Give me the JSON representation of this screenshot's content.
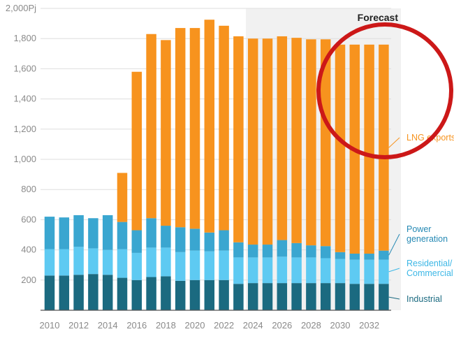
{
  "chart_data": {
    "type": "bar",
    "stacked": true,
    "y_unit_label": "2,000Pj",
    "ylim": [
      0,
      2000
    ],
    "y_ticks": [
      "2,000Pj",
      "1,800",
      "1,600",
      "1,400",
      "1,200",
      "1,000",
      "800",
      "600",
      "400",
      "200"
    ],
    "y_tick_values": [
      2000,
      1800,
      1600,
      1400,
      1200,
      1000,
      800,
      600,
      400,
      200
    ],
    "x_tick_labels": [
      "2010",
      "2012",
      "2014",
      "2016",
      "2018",
      "2020",
      "2022",
      "2024",
      "2026",
      "2028",
      "2030",
      "2032"
    ],
    "categories": [
      "2010",
      "2011",
      "2012",
      "2013",
      "2014",
      "2015",
      "2016",
      "2017",
      "2018",
      "2019",
      "2020",
      "2021",
      "2022",
      "2023",
      "2024",
      "2025",
      "2026",
      "2027",
      "2028",
      "2029",
      "2030",
      "2031",
      "2032",
      "2033"
    ],
    "forecast_label": "Forecast",
    "forecast_start": "2023",
    "grid": true,
    "legend": "right-inline",
    "series": [
      {
        "name": "Industrial",
        "color": "#1b6a80",
        "values": [
          230,
          230,
          235,
          240,
          235,
          215,
          200,
          220,
          225,
          195,
          200,
          200,
          200,
          175,
          180,
          180,
          180,
          180,
          180,
          180,
          180,
          175,
          175,
          175
        ]
      },
      {
        "name": "Residential/ Commercial",
        "color": "#5ecaf2",
        "values": [
          175,
          175,
          185,
          170,
          165,
          190,
          180,
          195,
          190,
          190,
          195,
          190,
          195,
          175,
          170,
          170,
          175,
          170,
          170,
          165,
          160,
          160,
          160,
          160
        ]
      },
      {
        "name": "Power generation",
        "color": "#3aa6d0",
        "values": [
          215,
          210,
          210,
          200,
          230,
          180,
          150,
          195,
          145,
          165,
          145,
          125,
          135,
          100,
          85,
          85,
          110,
          95,
          80,
          80,
          45,
          40,
          40,
          60
        ]
      },
      {
        "name": "LNG exports",
        "color": "#f7931e",
        "values": [
          0,
          0,
          0,
          0,
          0,
          325,
          1050,
          1220,
          1230,
          1320,
          1330,
          1410,
          1355,
          1365,
          1365,
          1365,
          1350,
          1360,
          1365,
          1370,
          1375,
          1385,
          1385,
          1365
        ]
      }
    ],
    "legend_entries": [
      {
        "text": "LNG exports",
        "color": "#f7931e",
        "lines": [
          "LNG exports"
        ]
      },
      {
        "text": "Power generation",
        "color": "#2589b4",
        "lines": [
          "Power",
          "generation"
        ]
      },
      {
        "text": "Residential/ Commercial",
        "color": "#3cb7e6",
        "lines": [
          "Residential/",
          "Commercial"
        ]
      },
      {
        "text": "Industrial",
        "color": "#1b6a80",
        "lines": [
          "Industrial"
        ]
      }
    ]
  },
  "annotation": {
    "type": "circle",
    "color": "#cc1818"
  }
}
